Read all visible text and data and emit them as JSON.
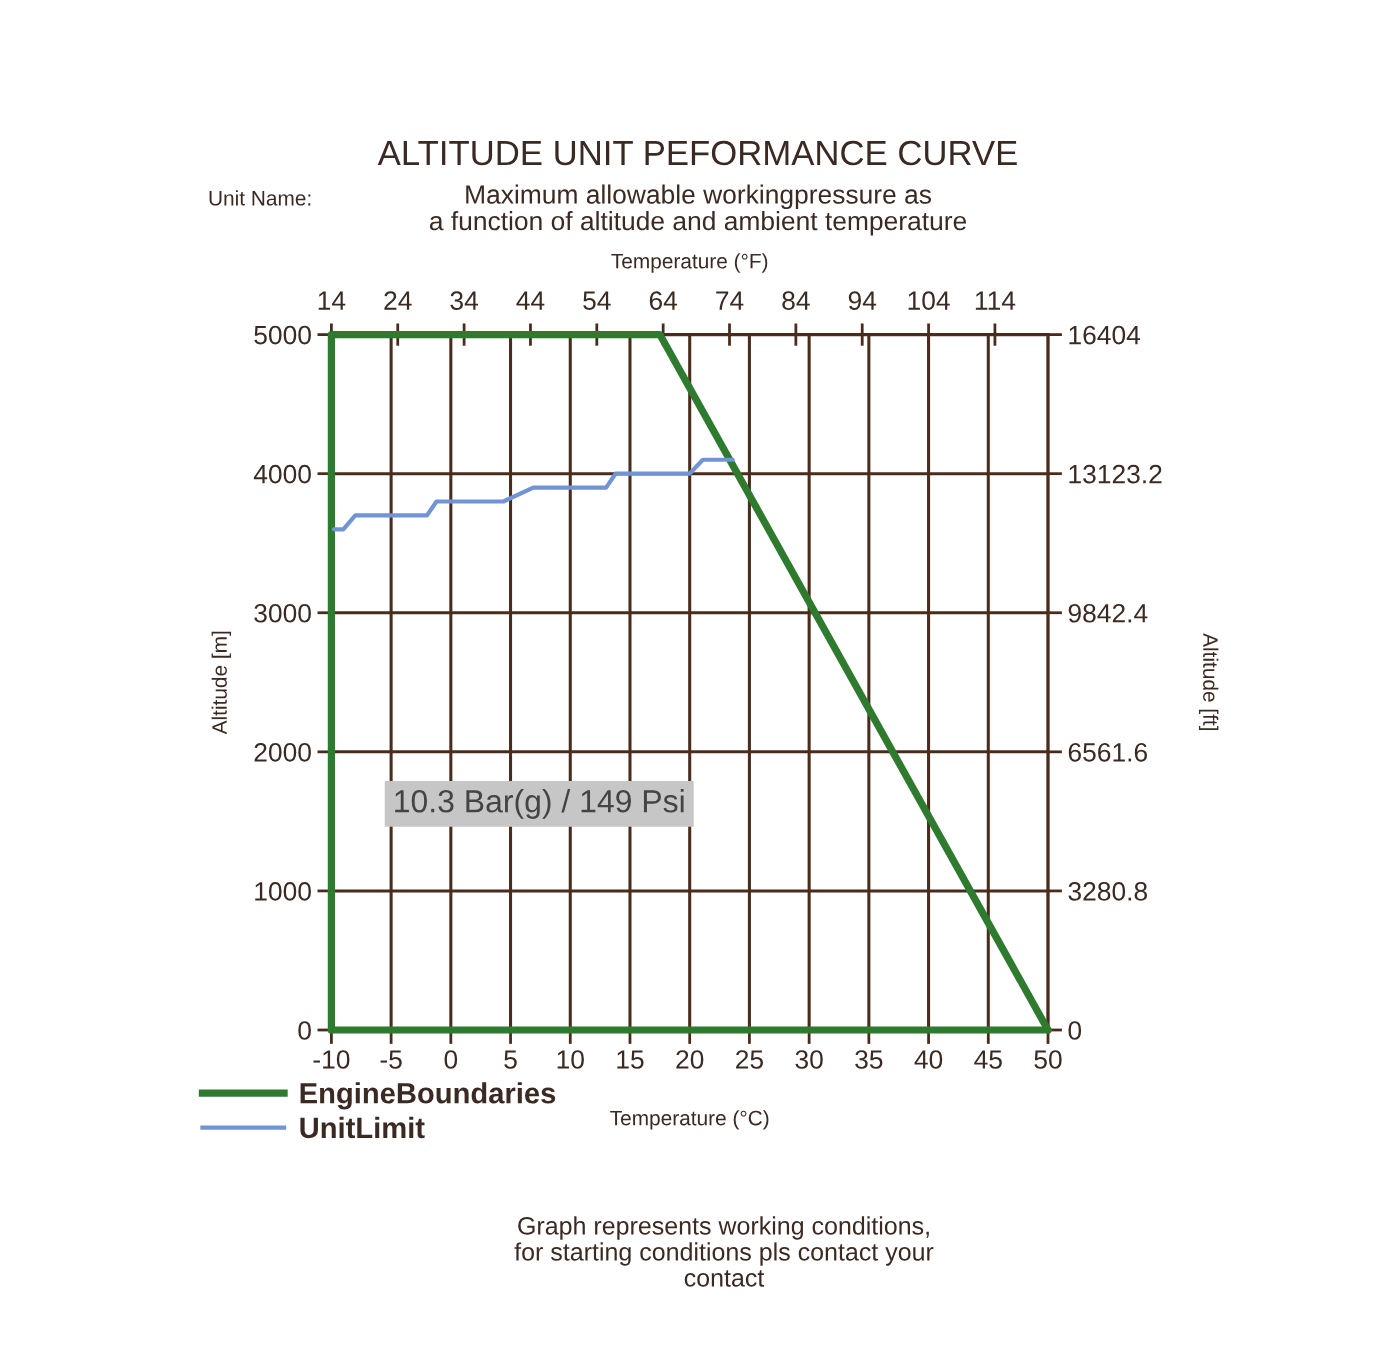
{
  "chart_data": {
    "type": "line",
    "title": "ALTITUDE UNIT PEFORMANCE CURVE",
    "subtitle": "Maximum allowable workingpressure as\na function of altitude and ambient temperature",
    "xlabel": "Temperature (°C)",
    "x2label": "Temperature (°F)",
    "ylabel": "Altitude [m]",
    "y2label": "Altitude [ft]",
    "xlim": [
      -10,
      50
    ],
    "xticks": [
      -10,
      -5,
      0,
      5,
      10,
      15,
      20,
      25,
      30,
      35,
      40,
      45,
      50
    ],
    "ylim": [
      0,
      5000
    ],
    "yticks": [
      0,
      1000,
      2000,
      3000,
      4000,
      5000
    ],
    "x2lim": [
      14,
      122
    ],
    "x2ticks": [
      14,
      24,
      34,
      44,
      54,
      64,
      74,
      84,
      94,
      104,
      114
    ],
    "y2lim": [
      0,
      16404
    ],
    "y2ticks": [
      0,
      3280.8,
      6561.6,
      9842.4,
      13123.2,
      16404
    ],
    "grid": true,
    "legend": "bottom left",
    "series": [
      {
        "name": "EngineBoundaries",
        "color": "#2e7a2e",
        "x": [
          -10,
          -10,
          17.5,
          50
        ],
        "values": [
          0,
          5000,
          5000,
          0
        ]
      },
      {
        "color": "#2e7a2e",
        "x": [
          -10,
          50
        ],
        "values": [
          0,
          0
        ]
      },
      {
        "name": "UnitLimit",
        "color": "#7094d4",
        "x": [
          -9.8,
          -9.0,
          -8.0,
          -2.0,
          -1.2,
          4.4,
          6.9,
          13.0,
          13.8,
          20.0,
          21.1,
          23.6
        ],
        "values": [
          3600,
          3600,
          3700,
          3700,
          3800,
          3800,
          3900,
          3900,
          4000,
          4000,
          4100,
          4100
        ]
      }
    ],
    "annotations": [
      "10.3 Bar(g) / 149 Psi",
      "Unit Name:",
      "Graph represents working conditions,\nfor starting conditions pls contact your\ncontact"
    ]
  }
}
